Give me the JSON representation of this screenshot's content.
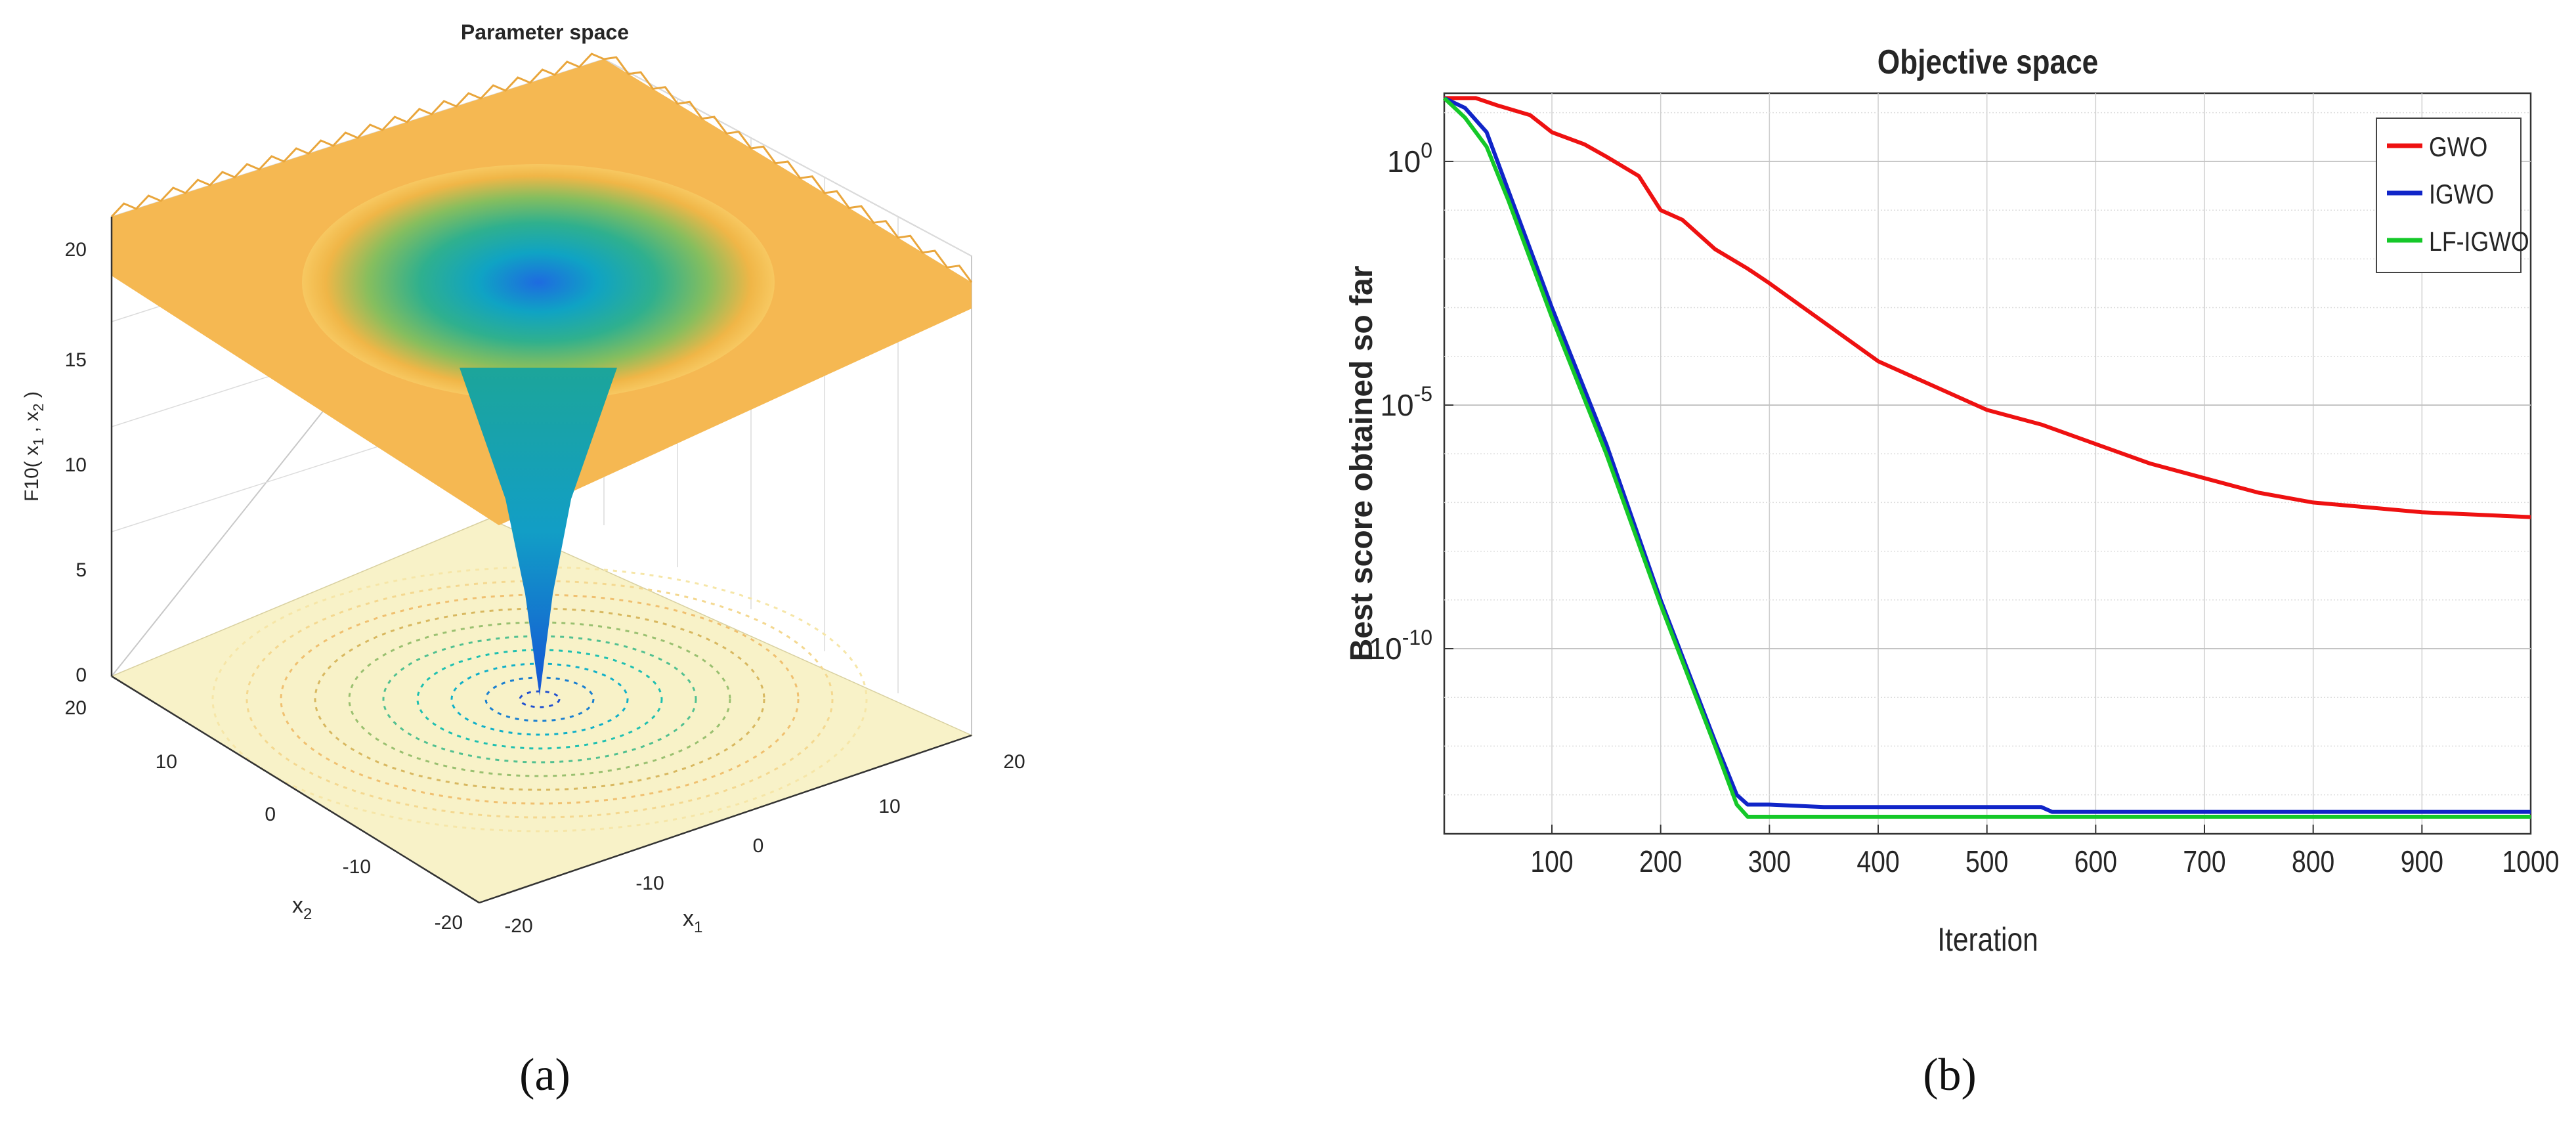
{
  "panels": [
    {
      "caption": "(a)",
      "chart_data": {
        "type": "surface",
        "title": "Parameter space",
        "function_label": "F10( x1 , x2 )",
        "zlabel": {
          "main": "F10( x",
          "sub1": "1",
          "mid": " , x",
          "sub2": "2",
          "end": " )"
        },
        "xlabel": {
          "main": "x",
          "sub": "1"
        },
        "ylabel": {
          "main": "x",
          "sub": "2"
        },
        "xticks": [
          "-20",
          "-10",
          "0",
          "10",
          "20"
        ],
        "yticks": [
          "-20",
          "-10",
          "0",
          "10",
          "20"
        ],
        "zticks": [
          "0",
          "5",
          "10",
          "15",
          "20"
        ],
        "xlim": [
          -20,
          20
        ],
        "ylim": [
          -20,
          20
        ],
        "zlim": [
          0,
          20
        ],
        "surface": {
          "min_value": 0,
          "min_at": [
            0,
            0
          ],
          "plateau_value": 20
        },
        "colormap": [
          "#1f5fd0",
          "#13a5c0",
          "#3ab88a",
          "#9fc24e",
          "#f4b94a",
          "#f9d96a"
        ]
      }
    },
    {
      "caption": "(b)",
      "chart_data": {
        "type": "line",
        "title": "Objective space",
        "xlabel": "Iteration",
        "ylabel": "Best score obtained so far",
        "xlim": [
          1,
          1000
        ],
        "ylim_log10": [
          -13.8,
          1.4
        ],
        "yscale": "log",
        "xticks": [
          "100",
          "200",
          "300",
          "400",
          "500",
          "600",
          "700",
          "800",
          "900",
          "1000"
        ],
        "yticks": [
          {
            "base": "10",
            "exp": "0",
            "value": 1
          },
          {
            "base": "10",
            "exp": "-5",
            "value": 1e-05
          },
          {
            "base": "10",
            "exp": "-10",
            "value": 1e-10
          }
        ],
        "grid": true,
        "legend_position": "top-right",
        "series": [
          {
            "name": "GWO",
            "color": "#ee1111",
            "x": [
              1,
              30,
              50,
              80,
              100,
              130,
              150,
              180,
              200,
              220,
              250,
              280,
              300,
              350,
              400,
              450,
              500,
              550,
              600,
              650,
              700,
              750,
              800,
              850,
              900,
              950,
              1000
            ],
            "y_log10": [
              1.3,
              1.3,
              1.15,
              0.95,
              0.6,
              0.35,
              0.1,
              -0.3,
              -1.0,
              -1.2,
              -1.8,
              -2.2,
              -2.5,
              -3.3,
              -4.1,
              -4.6,
              -5.1,
              -5.4,
              -5.8,
              -6.2,
              -6.5,
              -6.8,
              -7.0,
              -7.1,
              -7.2,
              -7.25,
              -7.3
            ]
          },
          {
            "name": "IGWO",
            "color": "#1025c8",
            "x": [
              1,
              20,
              40,
              60,
              80,
              100,
              150,
              200,
              250,
              270,
              280,
              300,
              350,
              400,
              500,
              550,
              560,
              600,
              700,
              800,
              900,
              1000
            ],
            "y_log10": [
              1.3,
              1.1,
              0.6,
              -0.6,
              -1.8,
              -3.0,
              -5.8,
              -9.0,
              -11.9,
              -13.0,
              -13.2,
              -13.2,
              -13.25,
              -13.25,
              -13.25,
              -13.25,
              -13.35,
              -13.35,
              -13.35,
              -13.35,
              -13.35,
              -13.35
            ]
          },
          {
            "name": "LF-IGWO",
            "color": "#15c829",
            "x": [
              1,
              20,
              40,
              60,
              80,
              100,
              150,
              200,
              250,
              270,
              280,
              300,
              400,
              500,
              600,
              700,
              800,
              900,
              1000
            ],
            "y_log10": [
              1.3,
              0.9,
              0.3,
              -0.8,
              -2.0,
              -3.2,
              -6.0,
              -9.1,
              -12.0,
              -13.2,
              -13.45,
              -13.45,
              -13.45,
              -13.45,
              -13.45,
              -13.45,
              -13.45,
              -13.45,
              -13.45
            ]
          }
        ]
      }
    }
  ]
}
